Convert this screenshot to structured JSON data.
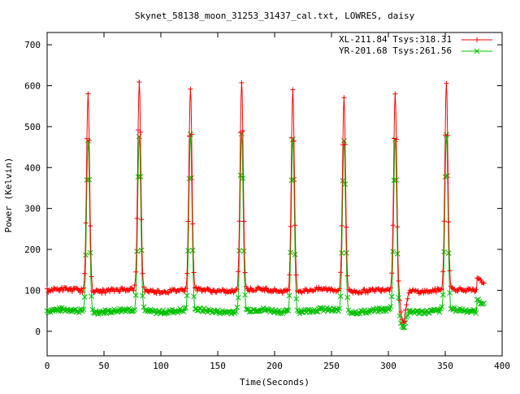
{
  "chart_data": {
    "type": "scatter",
    "title": "Skynet_58138_moon_31253_31437_cal.txt, LOWRES, daisy",
    "xlabel": "Time(Seconds)",
    "ylabel": "Power (Kelvin)",
    "xlim": [
      0,
      400
    ],
    "ylim": [
      -60,
      730
    ],
    "xticks": [
      0,
      50,
      100,
      150,
      200,
      250,
      300,
      350,
      400
    ],
    "yticks": [
      0,
      100,
      200,
      300,
      400,
      500,
      600,
      700
    ],
    "grid": false,
    "legend_position": "top-right",
    "peaks": [
      {
        "t": 36,
        "xl": 585,
        "yr": 470
      },
      {
        "t": 81,
        "xl": 610,
        "yr": 478
      },
      {
        "t": 126,
        "xl": 592,
        "yr": 475
      },
      {
        "t": 171,
        "xl": 612,
        "yr": 482
      },
      {
        "t": 216,
        "xl": 590,
        "yr": 475
      },
      {
        "t": 261,
        "xl": 572,
        "yr": 465
      },
      {
        "t": 306,
        "xl": 582,
        "yr": 470
      },
      {
        "t": 351,
        "xl": 602,
        "yr": 478
      }
    ],
    "dips": [
      {
        "t": 313,
        "xl": 20,
        "yr": 8
      }
    ],
    "series": [
      {
        "name": "XL-211.84 Tsys:318.31",
        "color": "#ff0000",
        "marker": "plus",
        "baseline": 100,
        "tail": [
          [
            378,
            128
          ],
          [
            384,
            118
          ]
        ]
      },
      {
        "name": "YR-201.68 Tsys:261.56",
        "color": "#00c000",
        "marker": "x",
        "baseline": 50,
        "tail": [
          [
            378,
            75
          ],
          [
            384,
            68
          ]
        ]
      }
    ]
  }
}
